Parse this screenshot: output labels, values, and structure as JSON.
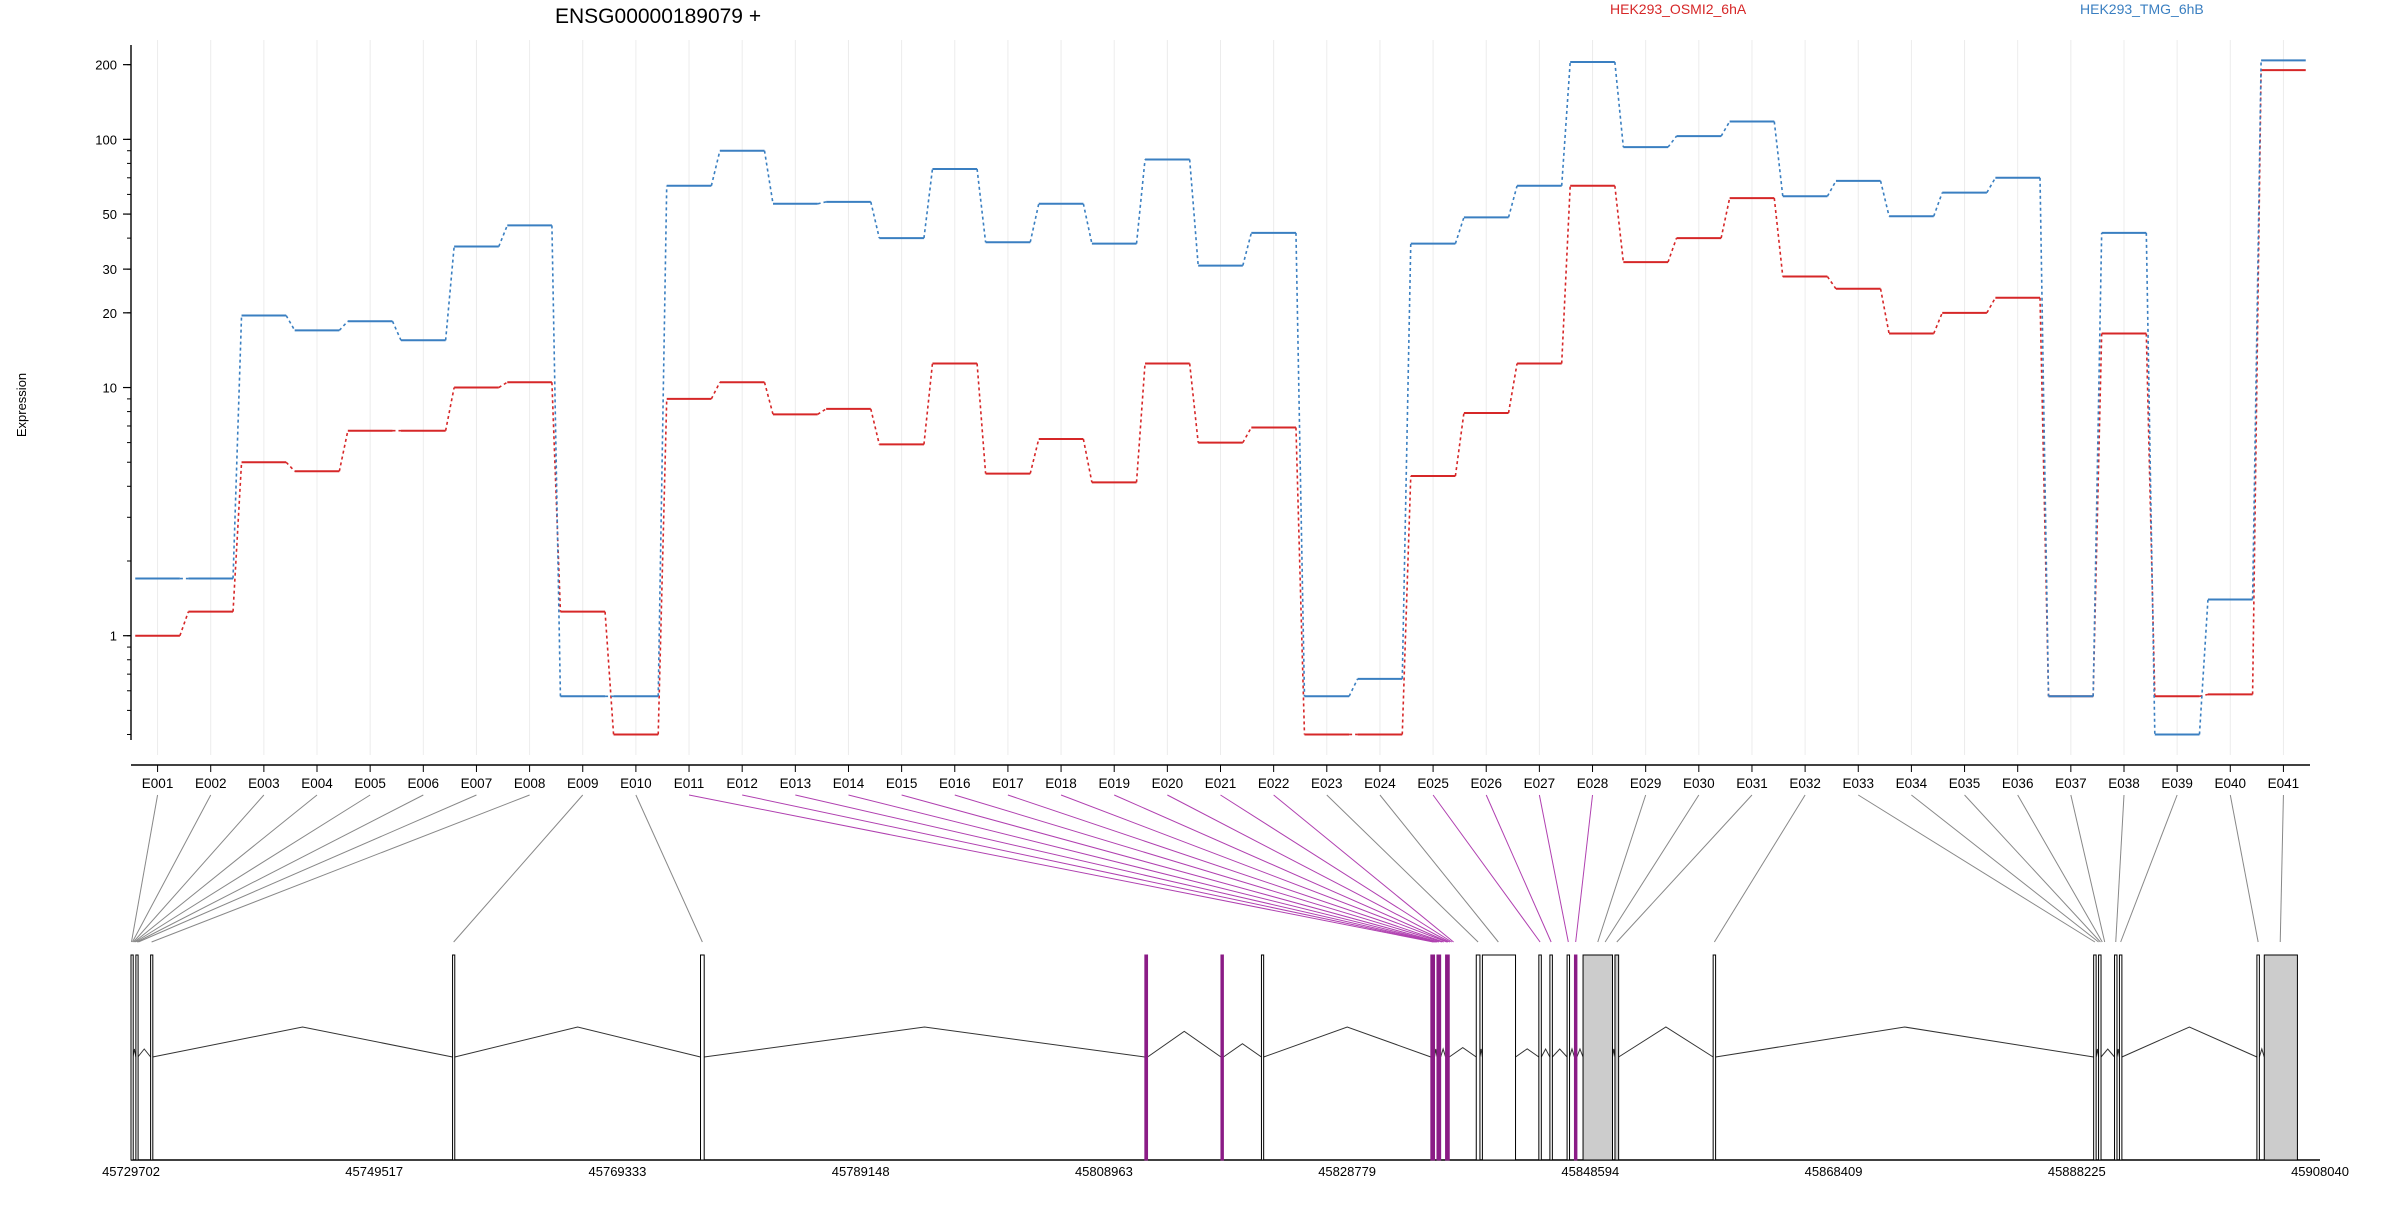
{
  "colors": {
    "series_a": "#d62728",
    "series_b": "#3a7fc1",
    "exon_default": "#ffffff",
    "exon_highlight": "#8b1c86",
    "exon_utr": "#cccccc",
    "connector_default": "#888888",
    "connector_highlight": "#b040b0"
  },
  "chart_data": {
    "type": "line",
    "title": "ENSG00000189079 +",
    "ylabel": "Expression",
    "yscale": "log",
    "ylim": [
      0.38,
      240
    ],
    "yticks": [
      1,
      10,
      20,
      30,
      50,
      100,
      200
    ],
    "categories": [
      "E001",
      "E002",
      "E003",
      "E004",
      "E005",
      "E006",
      "E007",
      "E008",
      "E009",
      "E010",
      "E011",
      "E012",
      "E013",
      "E014",
      "E015",
      "E016",
      "E017",
      "E018",
      "E019",
      "E020",
      "E021",
      "E022",
      "E023",
      "E024",
      "E025",
      "E026",
      "E027",
      "E028",
      "E029",
      "E030",
      "E031",
      "E032",
      "E033",
      "E034",
      "E035",
      "E036",
      "E037",
      "E038",
      "E039",
      "E040",
      "E041"
    ],
    "series": [
      {
        "name": "HEK293_OSMI2_6hA",
        "color": "#d62728",
        "values": [
          1.0,
          1.25,
          5.0,
          4.6,
          6.7,
          6.7,
          10.0,
          10.5,
          1.25,
          0.4,
          9.0,
          10.5,
          7.8,
          8.2,
          5.9,
          12.5,
          4.5,
          6.2,
          4.15,
          12.5,
          6.0,
          6.9,
          0.4,
          0.4,
          4.4,
          7.9,
          12.5,
          65.0,
          32.0,
          40.0,
          58.0,
          28.0,
          25.0,
          16.5,
          20.0,
          23.0,
          0.57,
          16.5,
          0.57,
          0.58,
          190.0
        ]
      },
      {
        "name": "HEK293_TMG_6hB",
        "color": "#3a7fc1",
        "values": [
          1.7,
          1.7,
          19.5,
          17.0,
          18.5,
          15.5,
          37.0,
          45.0,
          0.57,
          0.57,
          65.0,
          90.0,
          55.0,
          56.0,
          40.0,
          76.0,
          38.5,
          55.0,
          38.0,
          83.0,
          31.0,
          42.0,
          0.57,
          0.67,
          38.0,
          48.5,
          65.0,
          205.0,
          93.0,
          103.0,
          118.0,
          59.0,
          68.0,
          49.0,
          61.0,
          70.0,
          0.57,
          42.0,
          0.4,
          1.4,
          208.0
        ]
      }
    ],
    "grid": true,
    "legend_position": "top-right"
  },
  "gene_model": {
    "coordinate_labels": [
      "45729702",
      "45749517",
      "45769333",
      "45789148",
      "45808963",
      "45828779",
      "45848594",
      "45868409",
      "45888225",
      "45908040"
    ],
    "coordinate_range": [
      45729702,
      45908040
    ],
    "exons": [
      {
        "start": 45729702,
        "end": 45729860,
        "type": "coding"
      },
      {
        "start": 45730100,
        "end": 45730260,
        "type": "coding"
      },
      {
        "start": 45731300,
        "end": 45731460,
        "type": "coding"
      },
      {
        "start": 45755900,
        "end": 45756080,
        "type": "coding"
      },
      {
        "start": 45776100,
        "end": 45776400,
        "type": "coding"
      },
      {
        "start": 45812300,
        "end": 45812520,
        "type": "highlight"
      },
      {
        "start": 45818500,
        "end": 45818700,
        "type": "highlight"
      },
      {
        "start": 45821800,
        "end": 45821980,
        "type": "coding"
      },
      {
        "start": 45835600,
        "end": 45835900,
        "type": "highlight"
      },
      {
        "start": 45836100,
        "end": 45836400,
        "type": "highlight"
      },
      {
        "start": 45836800,
        "end": 45837100,
        "type": "highlight"
      },
      {
        "start": 45839300,
        "end": 45839600,
        "type": "coding"
      },
      {
        "start": 45839800,
        "end": 45842500,
        "type": "coding"
      },
      {
        "start": 45844400,
        "end": 45844600,
        "type": "coding"
      },
      {
        "start": 45845300,
        "end": 45845500,
        "type": "coding"
      },
      {
        "start": 45846700,
        "end": 45846900,
        "type": "coding"
      },
      {
        "start": 45847300,
        "end": 45847500,
        "type": "highlight"
      },
      {
        "start": 45848000,
        "end": 45850400,
        "type": "utr"
      },
      {
        "start": 45850600,
        "end": 45850900,
        "type": "utr"
      },
      {
        "start": 45858600,
        "end": 45858800,
        "type": "coding"
      },
      {
        "start": 45889600,
        "end": 45889800,
        "type": "coding"
      },
      {
        "start": 45890000,
        "end": 45890200,
        "type": "coding"
      },
      {
        "start": 45891300,
        "end": 45891500,
        "type": "coding"
      },
      {
        "start": 45891700,
        "end": 45891900,
        "type": "coding"
      },
      {
        "start": 45902900,
        "end": 45903100,
        "type": "coding"
      },
      {
        "start": 45903500,
        "end": 45906200,
        "type": "utr"
      }
    ],
    "label_targets": [
      45729740,
      45729820,
      45729900,
      45729980,
      45730060,
      45730180,
      45730300,
      45731380,
      45755990,
      45776250,
      45835800,
      45835900,
      45836000,
      45836100,
      45836250,
      45836500,
      45836650,
      45836900,
      45837000,
      45837150,
      45837300,
      45837450,
      45839450,
      45841100,
      45844500,
      45845400,
      45846800,
      45847400,
      45849200,
      45849800,
      45850750,
      45858700,
      45889700,
      45890000,
      45890150,
      45890300,
      45890500,
      45891400,
      45891800,
      45903000,
      45904800
    ],
    "label_highlight": [
      false,
      false,
      false,
      false,
      false,
      false,
      false,
      false,
      false,
      false,
      true,
      true,
      true,
      true,
      true,
      true,
      true,
      true,
      true,
      true,
      true,
      true,
      false,
      false,
      true,
      true,
      true,
      true,
      false,
      false,
      false,
      false,
      false,
      false,
      false,
      false,
      false,
      false,
      false,
      false,
      false
    ]
  }
}
